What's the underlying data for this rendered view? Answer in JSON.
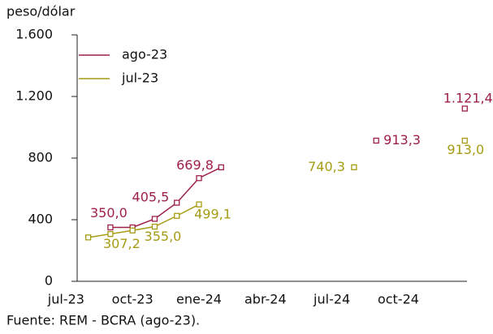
{
  "chart_data": {
    "type": "line",
    "y_label": "peso/dólar",
    "source": "Fuente: REM - BCRA (ago-23).",
    "xlim": [
      0.5,
      18.1
    ],
    "xticks": [
      {
        "value": 0,
        "label": "jul-23"
      },
      {
        "value": 3,
        "label": "oct-23"
      },
      {
        "value": 6,
        "label": "ene-24"
      },
      {
        "value": 9,
        "label": "abr-24"
      },
      {
        "value": 12,
        "label": "jul-24"
      },
      {
        "value": 15,
        "label": "oct-24"
      }
    ],
    "ylim": [
      0,
      1600
    ],
    "yticks": [
      0,
      400,
      800,
      {
        "value": 1200,
        "label": "1.200"
      },
      {
        "value": 1600,
        "label": "1.600"
      }
    ],
    "legend": "upper left",
    "series": [
      {
        "name": "ago-23",
        "color": "#9e1f48",
        "x": [
          2,
          3,
          4,
          5,
          6,
          7,
          14,
          18
        ],
        "values": [
          350.0,
          350,
          405.5,
          510,
          669.8,
          740,
          913.3,
          1121.4
        ],
        "value_labels": [
          "350,0",
          null,
          "405,5",
          null,
          "669,8",
          null,
          "913,3",
          "1.121,4"
        ]
      },
      {
        "name": "jul-23",
        "color": "#a59c14",
        "x": [
          1,
          2,
          3,
          4,
          5,
          6,
          13,
          18
        ],
        "values": [
          285,
          307.2,
          330,
          355.0,
          425,
          499.1,
          740.3,
          913.0
        ],
        "value_labels": [
          null,
          "307,2",
          null,
          "355,0",
          null,
          "499,1",
          "740,3",
          "913,0"
        ]
      }
    ]
  }
}
